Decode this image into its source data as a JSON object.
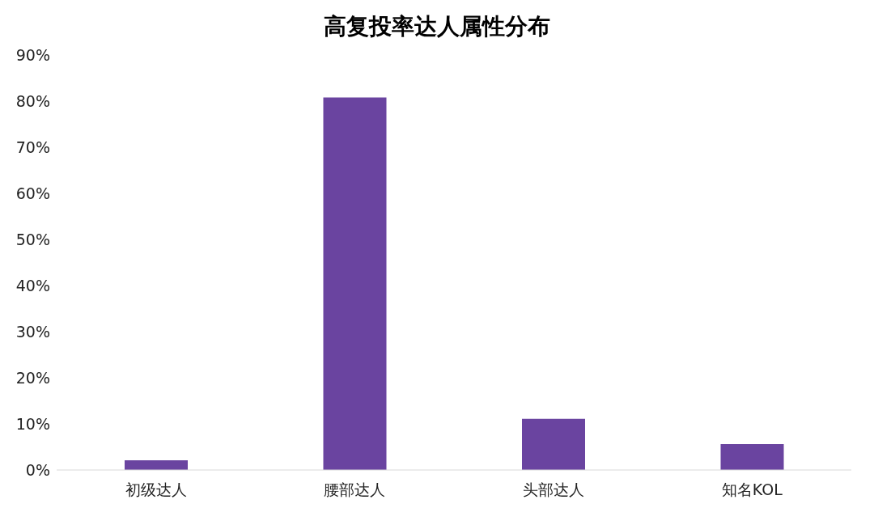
{
  "chart_data": {
    "type": "bar",
    "title": "高复投率达人属性分布",
    "categories": [
      "初级达人",
      "腰部达人",
      "头部达人",
      "知名KOL"
    ],
    "values": [
      2.1,
      80.8,
      11.1,
      5.6
    ],
    "color": "#6a44a0",
    "ylim": [
      0,
      90
    ],
    "yticks": [
      {
        "value": 0,
        "label": "0%"
      },
      {
        "value": 10,
        "label": "10%"
      },
      {
        "value": 20,
        "label": "20%"
      },
      {
        "value": 30,
        "label": "30%"
      },
      {
        "value": 40,
        "label": "40%"
      },
      {
        "value": 50,
        "label": "50%"
      },
      {
        "value": 60,
        "label": "60%"
      },
      {
        "value": 70,
        "label": "70%"
      },
      {
        "value": 80,
        "label": "80%"
      },
      {
        "value": 90,
        "label": "90%"
      }
    ],
    "grid": false
  }
}
